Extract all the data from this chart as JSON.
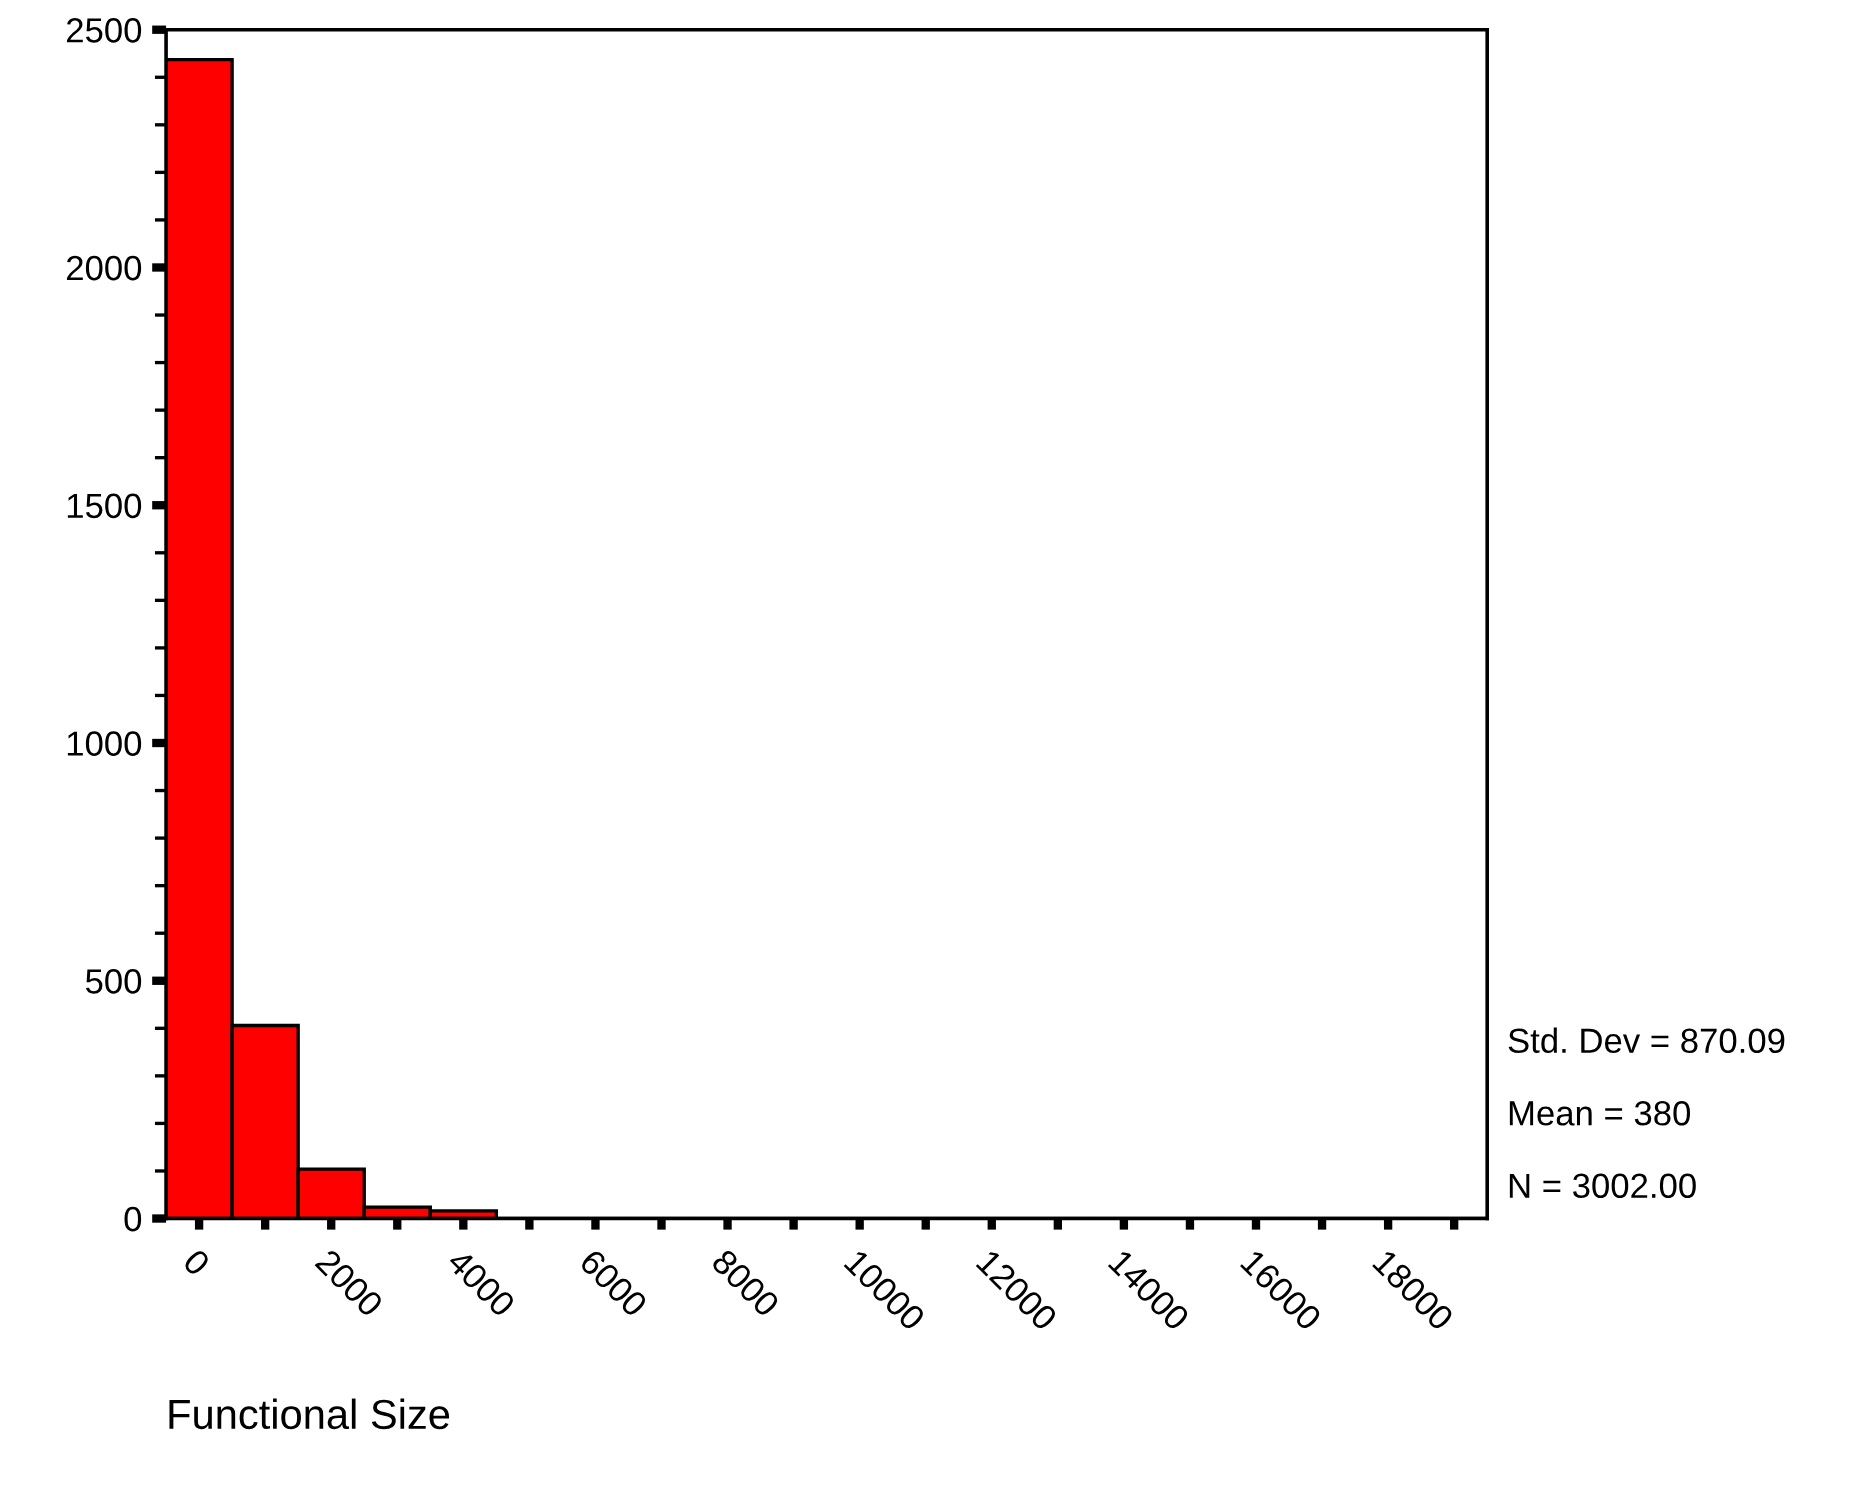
{
  "chart_data": {
    "type": "histogram",
    "xlabel": "Functional Size",
    "bins": [
      -500,
      500,
      1500,
      2500,
      3500,
      4500,
      5500,
      6500,
      7500,
      8500,
      9500,
      10500,
      11500,
      12500,
      13500,
      14500,
      15500,
      16500,
      17500,
      18500,
      19500
    ],
    "values": [
      2437,
      406,
      104,
      24,
      16,
      0,
      0,
      0,
      0,
      0,
      0,
      0,
      0,
      0,
      0,
      0,
      0,
      0,
      0,
      0
    ],
    "color": "#ff0000",
    "xlim": [
      -500,
      19500
    ],
    "xticks": [
      0,
      {
        "value": 1000,
        "label": null
      },
      2000,
      {
        "value": 3000,
        "label": null
      },
      4000,
      {
        "value": 5000,
        "label": null
      },
      6000,
      {
        "value": 7000,
        "label": null
      },
      8000,
      {
        "value": 9000,
        "label": null
      },
      10000,
      {
        "value": 11000,
        "label": null
      },
      12000,
      {
        "value": 13000,
        "label": null
      },
      14000,
      {
        "value": 15000,
        "label": null
      },
      16000,
      {
        "value": 17000,
        "label": null
      },
      18000,
      {
        "value": 19000,
        "label": null
      }
    ],
    "ylim": [
      0,
      2500
    ],
    "yticks": [
      0,
      {
        "value": 100,
        "label": null
      },
      {
        "value": 200,
        "label": null
      },
      {
        "value": 300,
        "label": null
      },
      {
        "value": 400,
        "label": null
      },
      500,
      {
        "value": 600,
        "label": null
      },
      {
        "value": 700,
        "label": null
      },
      {
        "value": 800,
        "label": null
      },
      {
        "value": 900,
        "label": null
      },
      1000,
      {
        "value": 1100,
        "label": null
      },
      {
        "value": 1200,
        "label": null
      },
      {
        "value": 1300,
        "label": null
      },
      {
        "value": 1400,
        "label": null
      },
      1500,
      {
        "value": 1600,
        "label": null
      },
      {
        "value": 1700,
        "label": null
      },
      {
        "value": 1800,
        "label": null
      },
      {
        "value": 1900,
        "label": null
      },
      2000,
      {
        "value": 2100,
        "label": null
      },
      {
        "value": 2200,
        "label": null
      },
      {
        "value": 2300,
        "label": null
      },
      {
        "value": 2400,
        "label": null
      },
      2500
    ],
    "annotations": [
      "Std. Dev = 870.09",
      "Mean = 380",
      "N = 3002.00"
    ],
    "grid": false
  }
}
